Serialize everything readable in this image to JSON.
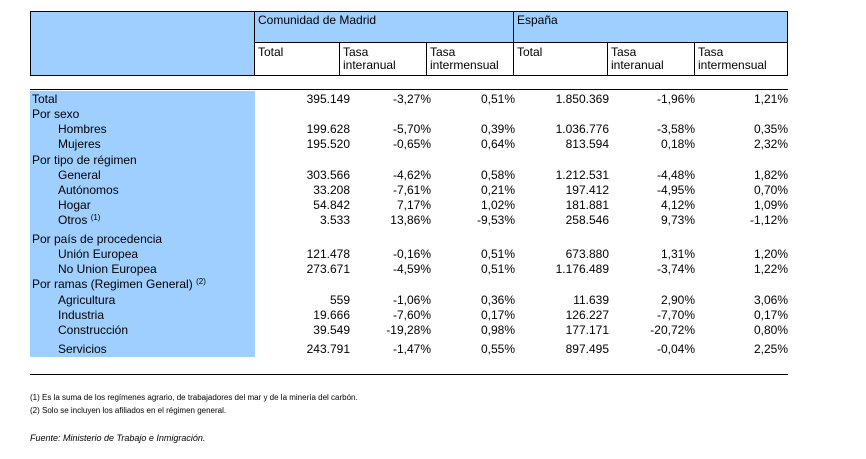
{
  "header": {
    "group_madrid": "Comunidad de Madrid",
    "group_espana": "España",
    "columns": [
      "Total",
      "Tasa interanual",
      "Tasa intermensual",
      "Total",
      "Tasa interanual",
      "Tasa intermensual"
    ],
    "col_lines": [
      [
        "Total"
      ],
      [
        "Tasa",
        "interanual"
      ],
      [
        "Tasa",
        "intermensual"
      ],
      [
        "Total"
      ],
      [
        "Tasa",
        "interanual"
      ],
      [
        "Tasa",
        "intermensual"
      ]
    ]
  },
  "rows": [
    {
      "label": "Total",
      "indent": false,
      "values": [
        "395.149",
        "-3,27%",
        "0,51%",
        "1.850.369",
        "-1,96%",
        "1,21%"
      ]
    },
    {
      "label": "Por sexo",
      "indent": false,
      "values": [
        "",
        "",
        "",
        "",
        "",
        ""
      ]
    },
    {
      "label": "Hombres",
      "indent": true,
      "values": [
        "199.628",
        "-5,70%",
        "0,39%",
        "1.036.776",
        "-3,58%",
        "0,35%"
      ]
    },
    {
      "label": "Mujeres",
      "indent": true,
      "values": [
        "195.520",
        "-0,65%",
        "0,64%",
        "813.594",
        "0,18%",
        "2,32%"
      ]
    },
    {
      "label": "Por tipo de régimen",
      "indent": false,
      "values": [
        "",
        "",
        "",
        "",
        "",
        ""
      ]
    },
    {
      "label": "General",
      "indent": true,
      "values": [
        "303.566",
        "-4,62%",
        "0,58%",
        "1.212.531",
        "-4,48%",
        "1,82%"
      ]
    },
    {
      "label": "Autónomos",
      "indent": true,
      "values": [
        "33.208",
        "-7,61%",
        "0,21%",
        "197.412",
        "-4,95%",
        "0,70%"
      ]
    },
    {
      "label": "Hogar",
      "indent": true,
      "values": [
        "54.842",
        "7,17%",
        "1,02%",
        "181.881",
        "4,12%",
        "1,09%"
      ]
    },
    {
      "label": "Otros",
      "sup": "(1)",
      "indent": true,
      "values": [
        "3.533",
        "13,86%",
        "-9,53%",
        "258.546",
        "9,73%",
        "-1,12%"
      ]
    },
    {
      "label": "Por país de procedencia",
      "indent": false,
      "values": [
        "",
        "",
        "",
        "",
        "",
        ""
      ]
    },
    {
      "label": "Unión Europea",
      "indent": true,
      "values": [
        "121.478",
        "-0,16%",
        "0,51%",
        "673.880",
        "1,31%",
        "1,20%"
      ]
    },
    {
      "label": "No Union Europea",
      "indent": true,
      "values": [
        "273.671",
        "-4,59%",
        "0,51%",
        "1.176.489",
        "-3,74%",
        "1,22%"
      ]
    },
    {
      "label": "Por ramas (Regimen General)",
      "sup": "(2)",
      "indent": false,
      "values": [
        "",
        "",
        "",
        "",
        "",
        ""
      ]
    },
    {
      "label": "Agricultura",
      "indent": true,
      "values": [
        "559",
        "-1,06%",
        "0,36%",
        "11.639",
        "2,90%",
        "3,06%"
      ]
    },
    {
      "label": "Industria",
      "indent": true,
      "values": [
        "19.666",
        "-7,60%",
        "0,17%",
        "126.227",
        "-7,70%",
        "0,17%"
      ]
    },
    {
      "label": "Construcción",
      "indent": true,
      "values": [
        "39.549",
        "-19,28%",
        "0,98%",
        "177.171",
        "-20,72%",
        "0,80%"
      ]
    },
    {
      "label": "Servicios",
      "indent": true,
      "values": [
        "243.791",
        "-1,47%",
        "0,55%",
        "897.495",
        "-0,04%",
        "2,25%"
      ]
    }
  ],
  "footnotes": [
    "(1) Es la suma de los regímenes  agrario, de trabajadores del mar y de la minería del carbón.",
    "(2) Solo se incluyen los afiliados en el régimen general."
  ],
  "source": "Fuente: Ministerio de Trabajo e Inmigración."
}
